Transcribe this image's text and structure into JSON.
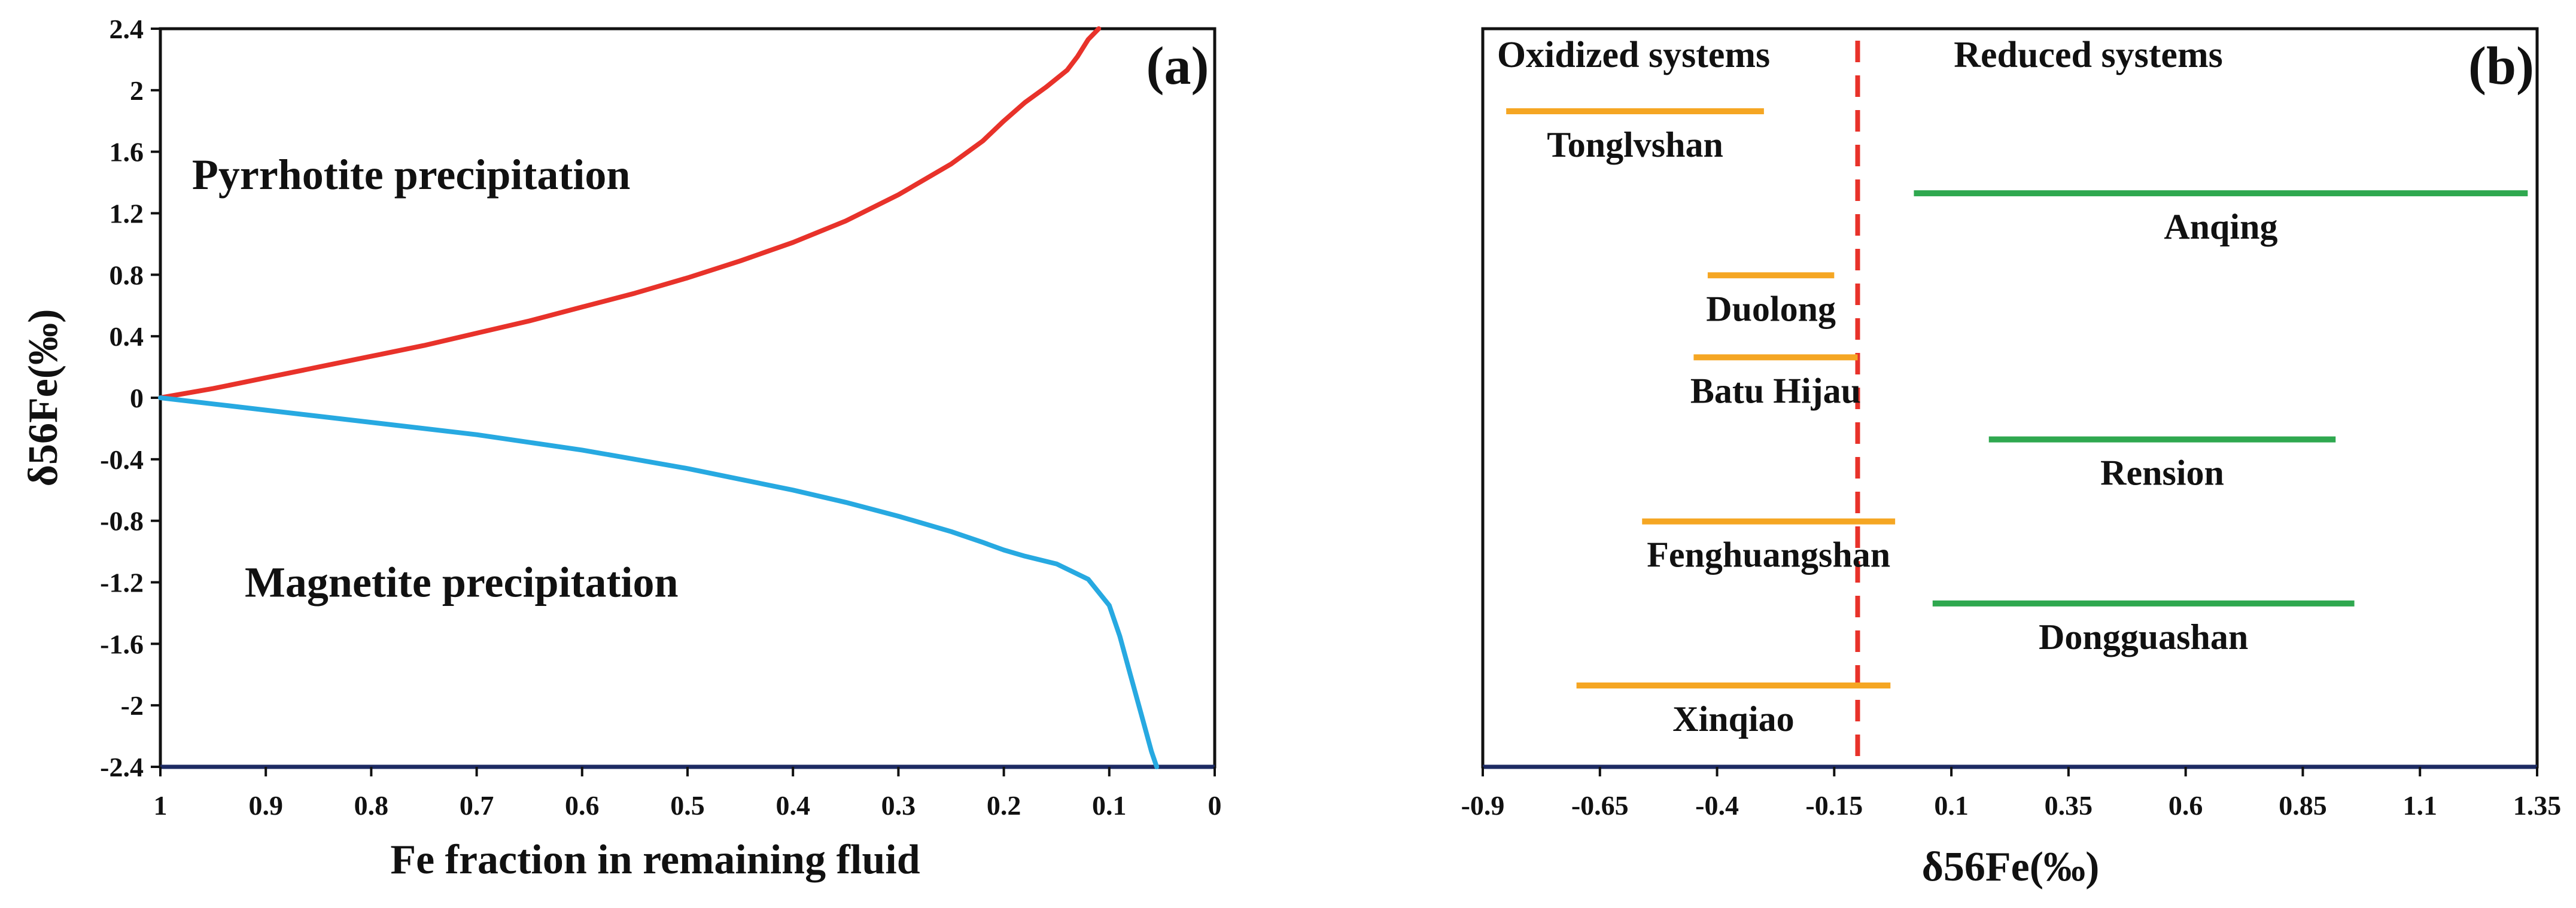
{
  "chart_data": [
    {
      "type": "line",
      "panel_label": "(a)",
      "xlabel": "Fe fraction in remaining fluid",
      "ylabel": "δ56Fe(‰)",
      "xlim": [
        1,
        0
      ],
      "ylim": [
        -2.4,
        2.4
      ],
      "x_ticks": [
        1,
        0.9,
        0.8,
        0.7,
        0.6,
        0.5,
        0.4,
        0.3,
        0.2,
        0.1,
        0
      ],
      "x_tick_labels": [
        "1",
        "0.9",
        "0.8",
        "0.7",
        "0.6",
        "0.5",
        "0.4",
        "0.3",
        "0.2",
        "0.1",
        "0"
      ],
      "y_ticks": [
        2.4,
        2,
        1.6,
        1.2,
        0.8,
        0.4,
        0,
        -0.4,
        -0.8,
        -1.2,
        -1.6,
        -2,
        -2.4
      ],
      "y_tick_labels": [
        "2.4",
        "2",
        "1.6",
        "1.2",
        "0.8",
        "0.4",
        "0",
        "-0.4",
        "-0.8",
        "-1.2",
        "-1.6",
        "-2",
        "-2.4"
      ],
      "annotations": [
        {
          "text": "Pyrrhotite precipitation",
          "x": 0.97,
          "y": 1.45
        },
        {
          "text": "Magnetite precipitation",
          "x": 0.92,
          "y": -1.2
        }
      ],
      "series": [
        {
          "name": "Pyrrhotite precipitation",
          "color": "#e8322a",
          "x": [
            1,
            0.95,
            0.9,
            0.85,
            0.8,
            0.75,
            0.7,
            0.65,
            0.6,
            0.55,
            0.5,
            0.45,
            0.4,
            0.35,
            0.3,
            0.25,
            0.22,
            0.2,
            0.18,
            0.16,
            0.14,
            0.13,
            0.12,
            0.11
          ],
          "y": [
            0,
            0.06,
            0.13,
            0.2,
            0.27,
            0.34,
            0.42,
            0.5,
            0.59,
            0.68,
            0.78,
            0.89,
            1.01,
            1.15,
            1.32,
            1.52,
            1.67,
            1.8,
            1.92,
            2.02,
            2.13,
            2.22,
            2.33,
            2.4
          ]
        },
        {
          "name": "Magnetite precipitation",
          "color": "#27a9e1",
          "x": [
            1,
            0.95,
            0.9,
            0.85,
            0.8,
            0.75,
            0.7,
            0.65,
            0.6,
            0.55,
            0.5,
            0.45,
            0.4,
            0.35,
            0.3,
            0.25,
            0.22,
            0.2,
            0.18,
            0.15,
            0.12,
            0.1,
            0.09,
            0.08,
            0.07,
            0.06,
            0.055
          ],
          "y": [
            0,
            -0.04,
            -0.08,
            -0.12,
            -0.16,
            -0.2,
            -0.24,
            -0.29,
            -0.34,
            -0.4,
            -0.46,
            -0.53,
            -0.6,
            -0.68,
            -0.77,
            -0.87,
            -0.94,
            -0.99,
            -1.03,
            -1.08,
            -1.18,
            -1.35,
            -1.55,
            -1.8,
            -2.05,
            -2.3,
            -2.4
          ]
        }
      ]
    },
    {
      "type": "range",
      "panel_label": "(b)",
      "xlabel": "δ56Fe(‰)",
      "xlim": [
        -0.9,
        1.35
      ],
      "x_ticks": [
        -0.9,
        -0.65,
        -0.4,
        -0.15,
        0.1,
        0.35,
        0.6,
        0.85,
        1.1,
        1.35
      ],
      "x_tick_labels": [
        "-0.9",
        "-0.65",
        "-0.4",
        "-0.15",
        "0.1",
        "0.35",
        "0.6",
        "0.85",
        "1.1",
        "1.35"
      ],
      "divider": {
        "x": -0.1,
        "color": "#e8322a",
        "style": "dashed"
      },
      "region_labels": [
        "Oxidized systems",
        "Reduced systems"
      ],
      "colors": {
        "oxidized": "#f5a623",
        "reduced": "#2fa84f"
      },
      "ranges": [
        {
          "name": "Tonglvshan",
          "system": "oxidized",
          "min": -0.85,
          "max": -0.3
        },
        {
          "name": "Anqing",
          "system": "reduced",
          "min": 0.02,
          "max": 1.33
        },
        {
          "name": "Duolong",
          "system": "oxidized",
          "min": -0.42,
          "max": -0.15
        },
        {
          "name": "Batu Hijau",
          "system": "oxidized",
          "min": -0.45,
          "max": -0.1
        },
        {
          "name": "Rension",
          "system": "reduced",
          "min": 0.18,
          "max": 0.92
        },
        {
          "name": "Fenghuangshan",
          "system": "oxidized",
          "min": -0.56,
          "max": -0.02
        },
        {
          "name": "Dongguashan",
          "system": "reduced",
          "min": 0.06,
          "max": 0.96
        },
        {
          "name": "Xinqiao",
          "system": "oxidized",
          "min": -0.7,
          "max": -0.03
        }
      ]
    }
  ]
}
